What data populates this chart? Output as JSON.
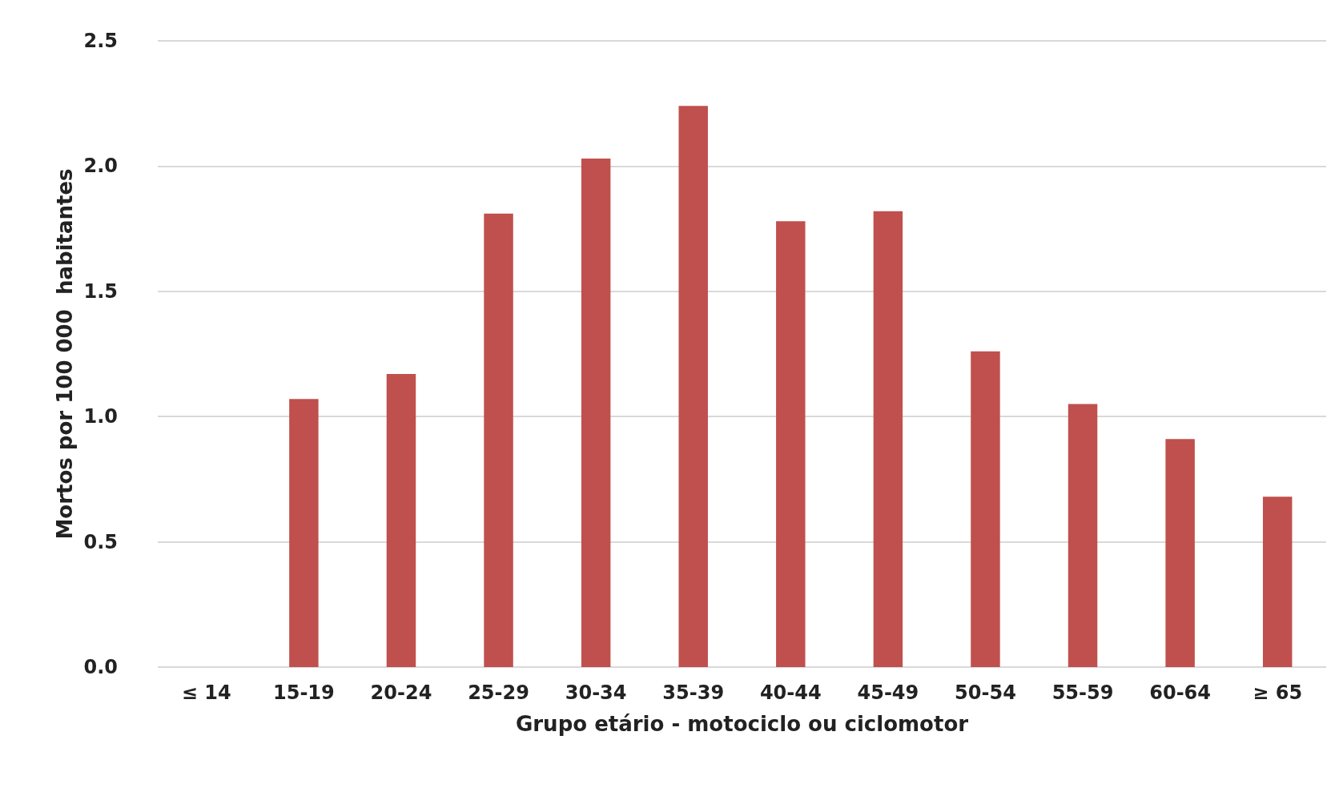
{
  "chart_data": {
    "type": "bar",
    "xlabel": "Grupo etário - motociclo ou ciclomotor",
    "ylabel": "Mortos por 100 000  habitantes",
    "categories": [
      "≤ 14",
      "15-19",
      "20-24",
      "25-29",
      "30-34",
      "35-39",
      "40-44",
      "45-49",
      "50-54",
      "55-59",
      "60-64",
      "≥ 65"
    ],
    "values": [
      0,
      1.07,
      1.17,
      1.81,
      2.03,
      2.24,
      1.78,
      1.82,
      1.26,
      1.05,
      0.91,
      0.68
    ],
    "color": "#c0504d",
    "ylim": [
      0,
      2.5
    ],
    "yticks": [
      {
        "value": 0,
        "label": "0.0"
      },
      {
        "value": 0.5,
        "label": "0.5"
      },
      {
        "value": 1,
        "label": "1.0"
      },
      {
        "value": 1.5,
        "label": "1.5"
      },
      {
        "value": 2,
        "label": "2.0"
      },
      {
        "value": 2.5,
        "label": "2.5"
      }
    ],
    "grid": "y"
  }
}
